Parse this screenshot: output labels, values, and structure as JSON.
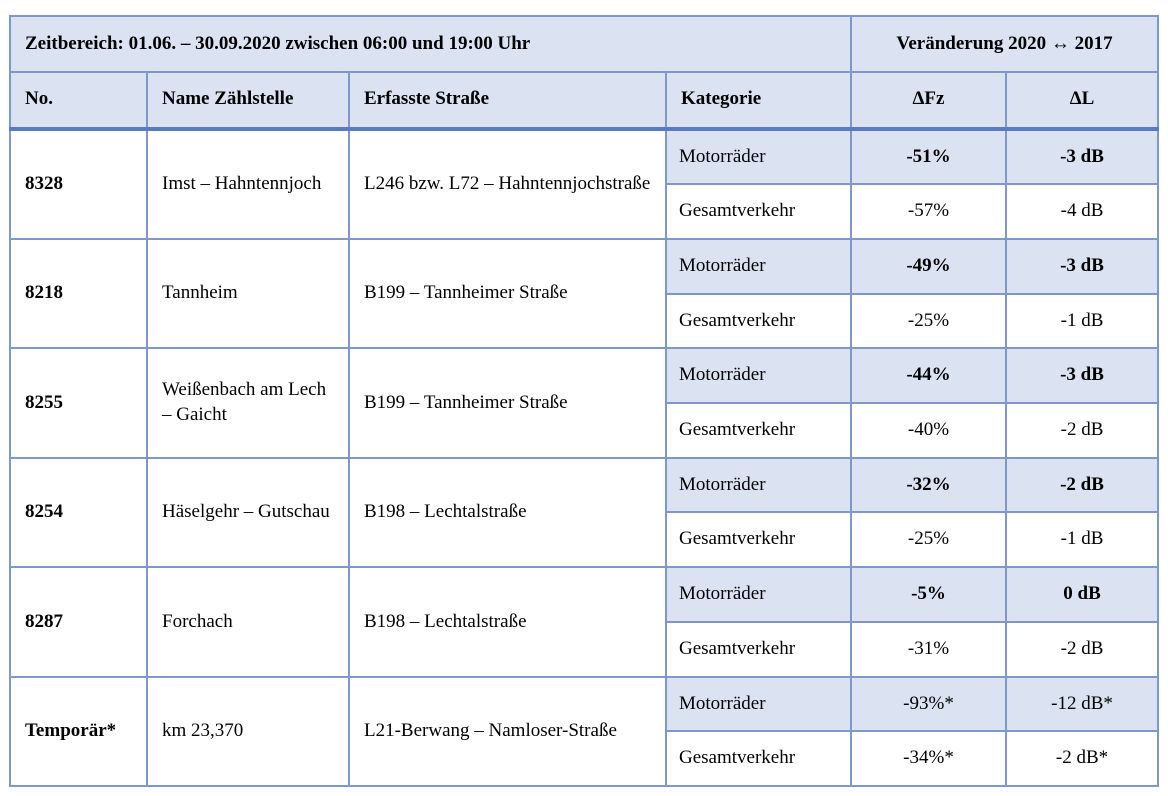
{
  "header": {
    "zeitbereich": "Zeitbereich: 01.06. – 30.09.2020 zwischen 06:00 und 19:00 Uhr",
    "veraenderung": "Veränderung 2020 ↔ 2017"
  },
  "columns": {
    "no": "No.",
    "name": "Name Zählstelle",
    "strasse": "Erfasste Straße",
    "kategorie": "Kategorie",
    "dfz": "ΔFz",
    "dl": "ΔL"
  },
  "rows": [
    {
      "no": "8328",
      "name": "Imst – Hahntennjoch",
      "strasse": "L246 bzw. L72 – Hahntennjochstraße",
      "moto": {
        "label": "Motorräder",
        "dfz": "-51%",
        "dl": "-3 dB"
      },
      "ges": {
        "label": "Gesamtverkehr",
        "dfz": "-57%",
        "dl": "-4 dB"
      }
    },
    {
      "no": "8218",
      "name": "Tannheim",
      "strasse": "B199 – Tannheimer Straße",
      "moto": {
        "label": "Motorräder",
        "dfz": "-49%",
        "dl": "-3 dB"
      },
      "ges": {
        "label": "Gesamtverkehr",
        "dfz": "-25%",
        "dl": "-1 dB"
      }
    },
    {
      "no": "8255",
      "name": "Weißenbach am Lech – Gaicht",
      "strasse": "B199 – Tannheimer Straße",
      "moto": {
        "label": "Motorräder",
        "dfz": "-44%",
        "dl": "-3 dB"
      },
      "ges": {
        "label": "Gesamtverkehr",
        "dfz": "-40%",
        "dl": "-2 dB"
      }
    },
    {
      "no": "8254",
      "name": "Häselgehr – Gutschau",
      "strasse": "B198 – Lechtalstraße",
      "moto": {
        "label": "Motorräder",
        "dfz": "-32%",
        "dl": "-2 dB"
      },
      "ges": {
        "label": "Gesamtverkehr",
        "dfz": "-25%",
        "dl": "-1 dB"
      }
    },
    {
      "no": "8287",
      "name": "Forchach",
      "strasse": "B198 – Lechtalstraße",
      "moto": {
        "label": "Motorräder",
        "dfz": "-5%",
        "dl": "0 dB"
      },
      "ges": {
        "label": "Gesamtverkehr",
        "dfz": "-31%",
        "dl": "-2 dB"
      }
    },
    {
      "no": "Temporär*",
      "name": "km 23,370",
      "strasse": "L21-Berwang – Namloser-Straße",
      "moto": {
        "label": "Motorräder",
        "dfz": "-93%*",
        "dl": "-12 dB*"
      },
      "ges": {
        "label": "Gesamtverkehr",
        "dfz": "-34%*",
        "dl": "-2 dB*"
      }
    }
  ]
}
